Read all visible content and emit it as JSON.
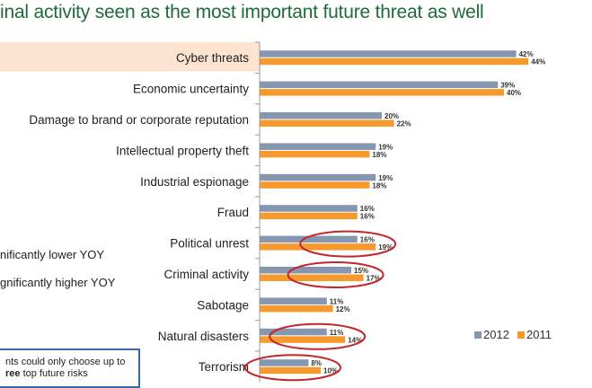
{
  "title": "inal activity seen as the most important future threat as well",
  "notes": {
    "lower": "nificantly lower YOY",
    "higher": "gnificantly higher YOY",
    "box_line1": "nts could only choose up to",
    "box_bold": "ree",
    "box_line2": " top future risks"
  },
  "colors": {
    "2012": "#8496b0",
    "2011": "#f79a2e",
    "highlight": "#fce4d0",
    "circle": "#c0282c",
    "axis": "#999999"
  },
  "chart_data": {
    "type": "bar",
    "orientation": "horizontal",
    "categories": [
      "Cyber threats",
      "Economic uncertainty",
      "Damage to brand or corporate reputation",
      "Intellectual property theft",
      "Industrial espionage",
      "Fraud",
      "Political unrest",
      "Criminal activity",
      "Sabotage",
      "Natural disasters",
      "Terrorism"
    ],
    "series": [
      {
        "name": "2012",
        "values": [
          42,
          39,
          20,
          19,
          19,
          16,
          16,
          15,
          11,
          11,
          8
        ],
        "labels": [
          "42%",
          "39%",
          "20%",
          "19%",
          "19%",
          "16%",
          "16%",
          "15%",
          "11%",
          "11%",
          "8%"
        ]
      },
      {
        "name": "2011",
        "values": [
          44,
          40,
          22,
          18,
          18,
          16,
          19,
          17,
          12,
          14,
          10
        ],
        "labels": [
          "44%",
          "40%",
          "22%",
          "18%",
          "18%",
          "16%",
          "19%",
          "17%",
          "12%",
          "14%",
          "10%"
        ]
      }
    ],
    "highlighted_category": "Cyber threats",
    "circled_categories": [
      "Political unrest",
      "Criminal activity",
      "Natural disasters",
      "Terrorism"
    ],
    "xlim": [
      0,
      50
    ],
    "legend": "bottom-right",
    "grid": false
  }
}
